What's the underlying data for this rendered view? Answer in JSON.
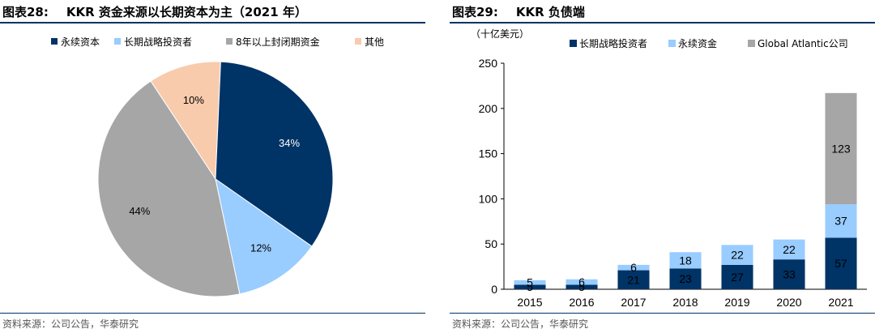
{
  "left": {
    "figure_no": "图表28:",
    "title": "KKR 资金来源以长期资本为主（2021 年）",
    "source": "资料来源：公司公告，华泰研究",
    "chart_data": {
      "type": "pie",
      "labels": [
        "永续资本",
        "长期战略投资者",
        "8年以上封闭期资金",
        "其他"
      ],
      "values": [
        34,
        12,
        44,
        10
      ],
      "display_labels": [
        "34%",
        "12%",
        "44%",
        "10%"
      ],
      "colors": [
        "#003366",
        "#99ccff",
        "#a6a6a6",
        "#f8cbad"
      ],
      "legend_position": "top"
    }
  },
  "right": {
    "figure_no": "图表29:",
    "title": "KKR 负债端",
    "unit": "（十亿美元）",
    "source": "资料来源：公司公告，华泰研究",
    "chart_data": {
      "type": "bar",
      "stacked": true,
      "categories": [
        "2015",
        "2016",
        "2017",
        "2018",
        "2019",
        "2020",
        "2021"
      ],
      "series": [
        {
          "name": "长期战略投资者",
          "color": "#003366",
          "values": [
            5,
            5,
            21,
            23,
            27,
            33,
            57
          ]
        },
        {
          "name": "永续资金",
          "color": "#99ccff",
          "values": [
            5,
            6,
            6,
            18,
            22,
            22,
            37
          ]
        },
        {
          "name": "Global Atlantic公司",
          "color": "#a6a6a6",
          "values": [
            0,
            0,
            0,
            0,
            0,
            0,
            123
          ]
        }
      ],
      "ylim": [
        0,
        250
      ],
      "yticks": [
        0,
        50,
        100,
        150,
        200,
        250
      ],
      "legend_position": "top"
    }
  }
}
